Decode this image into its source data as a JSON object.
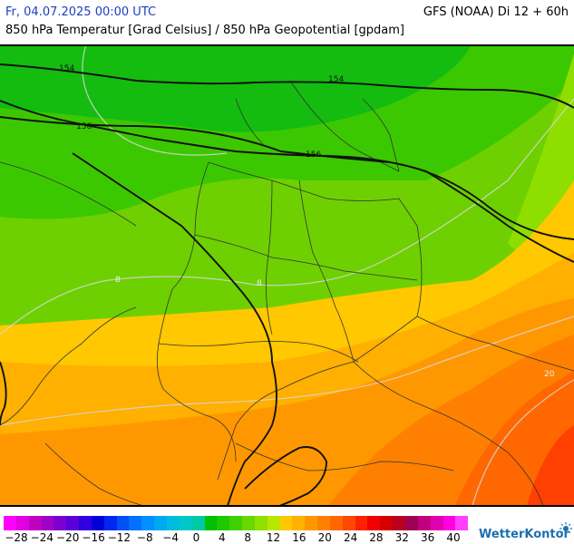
{
  "header": {
    "date": "Fr, 04.07.2025 00:00 UTC",
    "model": "GFS (NOAA) Di 12 + 60h",
    "parameter": "850 hPa Temperatur [Grad Celsius] / 850 hPa Geopotential [gpdam]"
  },
  "map": {
    "region": "Mitteleuropa / Deutschland",
    "geopotential_contours": [
      "154",
      "156",
      "154",
      "156"
    ],
    "temperature_contours": [
      "8",
      "8",
      "20"
    ]
  },
  "legend": {
    "colors": [
      "#ff00ff",
      "#e000e0",
      "#c000c0",
      "#a000c8",
      "#7a00d0",
      "#5a00d8",
      "#3000e0",
      "#0000d8",
      "#0028ee",
      "#0050f5",
      "#0070ff",
      "#0090ff",
      "#00a8f0",
      "#00bce0",
      "#00c8c8",
      "#00c8a8",
      "#00c000",
      "#20c800",
      "#40d000",
      "#68d800",
      "#90e000",
      "#b8e800",
      "#ffc800",
      "#ffb000",
      "#ff9800",
      "#ff8000",
      "#ff6800",
      "#ff4800",
      "#ff2000",
      "#f00000",
      "#d40000",
      "#b80020",
      "#a00050",
      "#c00080",
      "#e000b0",
      "#ff00e0",
      "#ff40ff"
    ],
    "labels": [
      "−28",
      "−24",
      "−20",
      "−16",
      "−12",
      "−8",
      "−4",
      "0",
      "4",
      "8",
      "12",
      "16",
      "20",
      "24",
      "28",
      "32",
      "36",
      "40"
    ]
  },
  "brand": "WetterKontor"
}
